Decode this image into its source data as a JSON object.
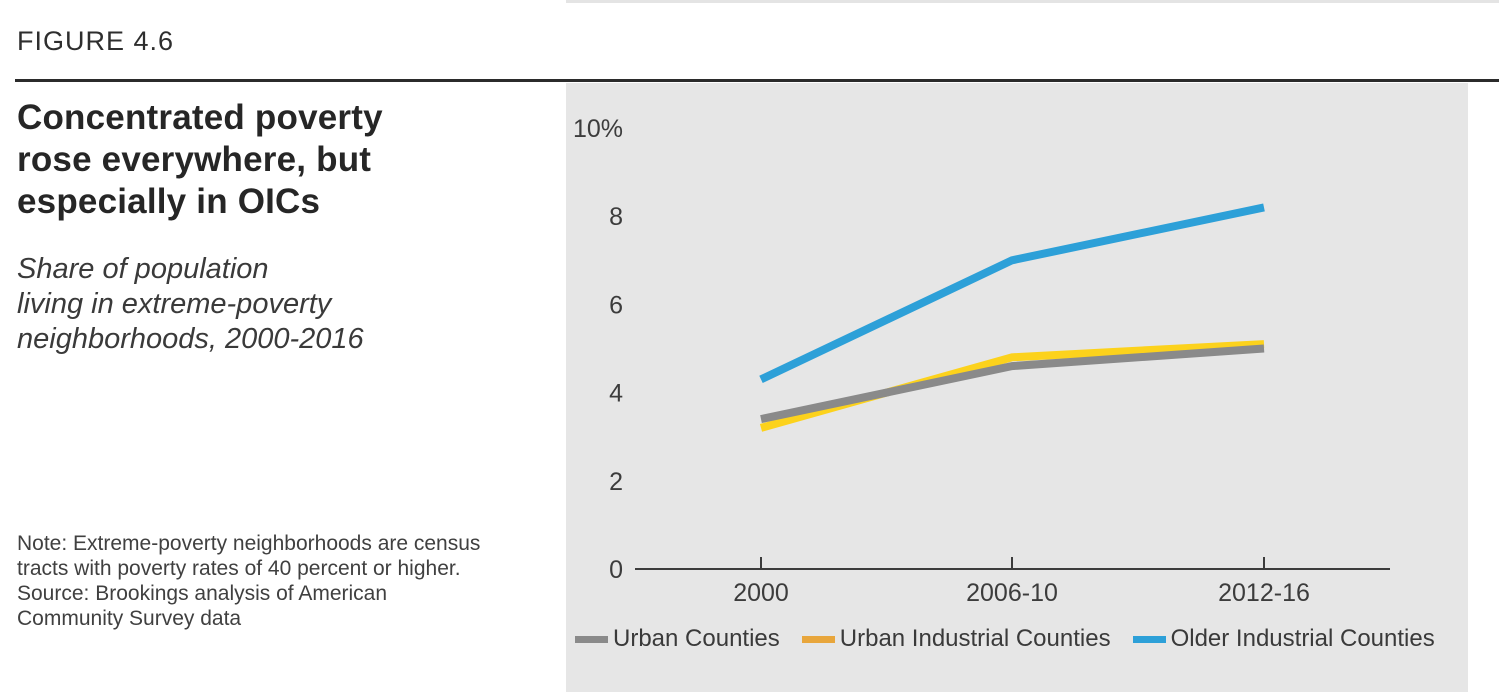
{
  "figure_label": "FIGURE 4.6",
  "title_text": "Concentrated poverty\nrose everywhere, but\nespecially in OICs",
  "subtitle_text": "Share of population\nliving in extreme-poverty\nneighborhoods, 2000-2016",
  "note_text": "Note: Extreme-poverty neighborhoods are census\ntracts with poverty rates of 40 percent or higher.\nSource: Brookings analysis of American\nCommunity Survey data",
  "colors": {
    "panel_background": "#e6e6e6",
    "axis": "#3c3c3c",
    "accent_blue": "#2da0d8",
    "accent_yellow": "#fcd21c",
    "accent_gray": "#8a8a8a"
  },
  "chart_data": {
    "type": "line",
    "categories": [
      "2000",
      "2006-10",
      "2012-16"
    ],
    "series": [
      {
        "name": "Urban Counties",
        "values": [
          3.4,
          4.6,
          5.0
        ],
        "color": "#8a8a8a",
        "legend_color": "#8a8a8a"
      },
      {
        "name": "Urban Industrial Counties",
        "values": [
          3.2,
          4.8,
          5.1
        ],
        "color": "#fcd21c",
        "legend_color": "#e8a63c"
      },
      {
        "name": "Older Industrial Counties",
        "values": [
          4.3,
          7.0,
          8.2
        ],
        "color": "#2da0d8",
        "legend_color": "#2da0d8"
      }
    ],
    "y_ticks": [
      {
        "label": "10%",
        "value": 10
      },
      {
        "label": "8",
        "value": 8
      },
      {
        "label": "6",
        "value": 6
      },
      {
        "label": "4",
        "value": 4
      },
      {
        "label": "2",
        "value": 2
      },
      {
        "label": "0",
        "value": 0
      }
    ],
    "ylim": [
      0,
      10
    ],
    "unit": "%",
    "grid": false,
    "legend_position": "bottom",
    "draw_order": [
      1,
      0,
      2
    ]
  }
}
